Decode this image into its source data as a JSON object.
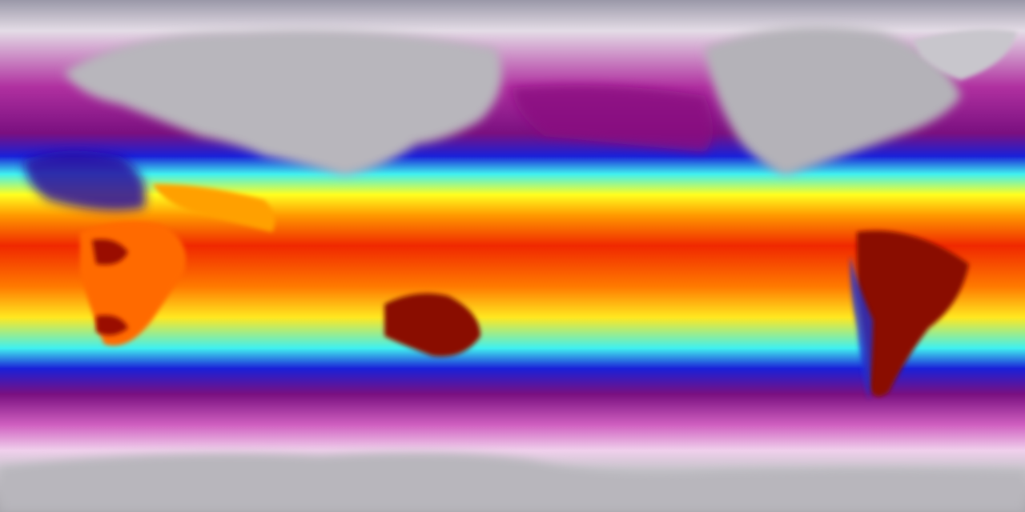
{
  "map": {
    "projection": "equirectangular",
    "colormap": [
      "#9a98a8",
      "#ece4ec",
      "#c040a8",
      "#8a1080",
      "#1a20d8",
      "#40f0f0",
      "#ffff20",
      "#ff9a00",
      "#f02800",
      "#7a0000"
    ],
    "land_cold_color": "#b8b6bc",
    "land_hot_color": "#8a0a00",
    "regions": [
      "eurasia",
      "north-america",
      "greenland",
      "africa",
      "arabia-india",
      "south-america",
      "australia",
      "antarctica"
    ]
  }
}
